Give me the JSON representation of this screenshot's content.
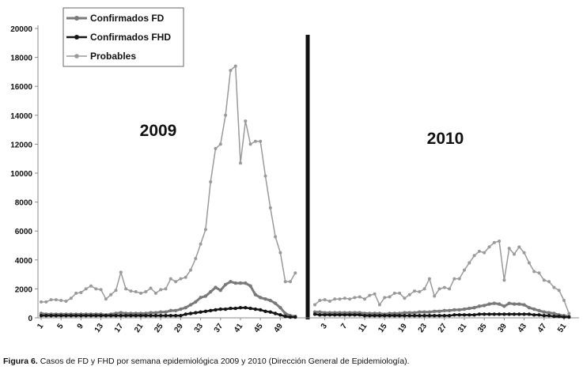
{
  "chart_data": {
    "type": "line",
    "annotations": [
      "2009",
      "2010"
    ],
    "caption_label": "Figura 6.",
    "caption": "Casos de FD y FHD por semana epidemiológica 2009 y 2010 (Dirección General de Epidemiología).",
    "categories": [
      1,
      null,
      null,
      null,
      5,
      null,
      null,
      null,
      9,
      null,
      null,
      null,
      13,
      null,
      null,
      null,
      17,
      null,
      null,
      null,
      21,
      null,
      null,
      null,
      25,
      null,
      null,
      null,
      29,
      null,
      null,
      null,
      33,
      null,
      null,
      null,
      37,
      null,
      null,
      null,
      41,
      null,
      null,
      null,
      45,
      null,
      null,
      null,
      49,
      null,
      null,
      null,
      null,
      null,
      3,
      null,
      null,
      null,
      7,
      null,
      null,
      null,
      11,
      null,
      null,
      null,
      15,
      null,
      null,
      null,
      19,
      null,
      null,
      null,
      23,
      null,
      null,
      null,
      27,
      null,
      null,
      null,
      31,
      null,
      null,
      null,
      35,
      null,
      null,
      null,
      39,
      null,
      null,
      null,
      43,
      null,
      null,
      null,
      47,
      null,
      null,
      null,
      51,
      null
    ],
    "series": [
      {
        "name": "Confirmados FD",
        "color": "#7a7a7a",
        "values": [
          300,
          250,
          250,
          250,
          250,
          250,
          250,
          250,
          250,
          250,
          250,
          250,
          250,
          200,
          250,
          300,
          350,
          300,
          300,
          300,
          300,
          300,
          350,
          350,
          400,
          400,
          500,
          500,
          600,
          700,
          900,
          1100,
          1400,
          1500,
          1800,
          2100,
          1900,
          2300,
          2500,
          2400,
          2400,
          2400,
          2200,
          1600,
          1400,
          1300,
          1200,
          1000,
          700,
          300,
          150,
          100,
          400,
          400,
          350,
          350,
          350,
          350,
          350,
          350,
          350,
          350,
          300,
          300,
          300,
          300,
          250,
          300,
          300,
          300,
          350,
          350,
          350,
          400,
          400,
          400,
          450,
          450,
          500,
          500,
          550,
          550,
          600,
          650,
          700,
          800,
          850,
          950,
          1000,
          950,
          800,
          1000,
          950,
          950,
          900,
          700,
          600,
          500,
          400,
          350,
          300,
          200,
          150,
          100
        ]
      },
      {
        "name": "Confirmados FHD",
        "color": "#151515",
        "values": [
          150,
          150,
          150,
          150,
          150,
          150,
          150,
          150,
          150,
          150,
          150,
          150,
          150,
          150,
          150,
          150,
          150,
          150,
          150,
          150,
          150,
          150,
          150,
          150,
          150,
          150,
          150,
          150,
          150,
          250,
          300,
          350,
          400,
          450,
          500,
          550,
          600,
          600,
          650,
          650,
          700,
          700,
          650,
          600,
          550,
          450,
          400,
          300,
          200,
          100,
          50,
          50,
          250,
          200,
          200,
          200,
          200,
          200,
          200,
          200,
          200,
          200,
          150,
          150,
          150,
          150,
          150,
          150,
          150,
          150,
          150,
          150,
          150,
          150,
          150,
          150,
          150,
          150,
          150,
          150,
          200,
          200,
          200,
          200,
          200,
          250,
          250,
          250,
          250,
          250,
          250,
          250,
          250,
          250,
          250,
          250,
          200,
          200,
          150,
          150,
          100,
          100,
          50,
          50
        ]
      },
      {
        "name": "Probables",
        "color": "#9a9a9a",
        "values": [
          1100,
          1100,
          1250,
          1250,
          1200,
          1150,
          1350,
          1700,
          1750,
          2000,
          2200,
          2000,
          1950,
          1300,
          1600,
          1900,
          3150,
          2000,
          1850,
          1800,
          1700,
          1800,
          2050,
          1700,
          1950,
          2000,
          2700,
          2500,
          2700,
          2800,
          3300,
          4100,
          5100,
          6100,
          9400,
          11700,
          12000,
          14000,
          17100,
          17400,
          10700,
          13600,
          12000,
          12200,
          12200,
          9800,
          7600,
          5600,
          4500,
          2500,
          2500,
          3100,
          900,
          1200,
          1250,
          1150,
          1300,
          1300,
          1350,
          1300,
          1400,
          1450,
          1300,
          1550,
          1650,
          900,
          1400,
          1450,
          1700,
          1700,
          1350,
          1600,
          1850,
          1800,
          2000,
          2700,
          1500,
          2000,
          2100,
          2000,
          2700,
          2700,
          3300,
          3800,
          4300,
          4600,
          4500,
          4900,
          5200,
          5300,
          2600,
          4800,
          4400,
          4900,
          4500,
          3800,
          3200,
          3100,
          2600,
          2500,
          2100,
          1900,
          1200,
          300
        ]
      }
    ],
    "ylim": [
      0,
      20000
    ],
    "yticks": [
      0,
      2000,
      4000,
      6000,
      8000,
      10000,
      12000,
      14000,
      16000,
      18000,
      20000
    ],
    "grid": false,
    "legend": "top-left"
  }
}
